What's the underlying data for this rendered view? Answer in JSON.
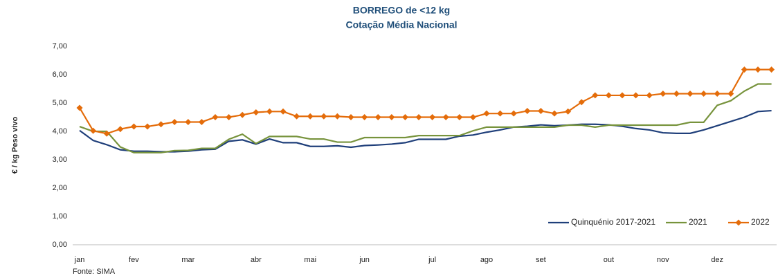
{
  "chart_data": {
    "type": "line",
    "title": "BORREGO de <12 kg",
    "subtitle": "Cotação Média Nacional",
    "y_label": "€ / kg Peso vivo",
    "source": "Fonte: SIMA",
    "categories": [
      "jan",
      null,
      null,
      null,
      "fev",
      null,
      null,
      null,
      "mar",
      null,
      null,
      null,
      null,
      "abr",
      null,
      null,
      null,
      "mai",
      null,
      null,
      null,
      "jun",
      null,
      null,
      null,
      null,
      "jul",
      null,
      null,
      null,
      "ago",
      null,
      null,
      null,
      "set",
      null,
      null,
      null,
      null,
      "out",
      null,
      null,
      null,
      "nov",
      null,
      null,
      null,
      "dez",
      null,
      null,
      null,
      null
    ],
    "series": [
      {
        "name": "Quinquénio 2017-2021",
        "color": "#1f3f7a",
        "marker": "none",
        "values": [
          4.03,
          3.68,
          3.53,
          3.35,
          3.3,
          3.3,
          3.28,
          3.28,
          3.3,
          3.35,
          3.37,
          3.65,
          3.7,
          3.55,
          3.73,
          3.6,
          3.6,
          3.47,
          3.47,
          3.49,
          3.44,
          3.5,
          3.52,
          3.55,
          3.6,
          3.72,
          3.72,
          3.72,
          3.83,
          3.87,
          3.97,
          4.05,
          4.15,
          4.18,
          4.23,
          4.2,
          4.22,
          4.25,
          4.25,
          4.23,
          4.18,
          4.1,
          4.05,
          3.95,
          3.93,
          3.93,
          4.05,
          4.2,
          4.35,
          4.5,
          4.7,
          4.73
        ]
      },
      {
        "name": "2021",
        "color": "#77933c",
        "marker": "none",
        "values": [
          4.17,
          4.0,
          4.0,
          3.45,
          3.25,
          3.25,
          3.25,
          3.32,
          3.33,
          3.4,
          3.4,
          3.72,
          3.9,
          3.57,
          3.82,
          3.82,
          3.82,
          3.73,
          3.73,
          3.62,
          3.62,
          3.78,
          3.78,
          3.78,
          3.78,
          3.85,
          3.85,
          3.85,
          3.85,
          4.02,
          4.15,
          4.15,
          4.15,
          4.15,
          4.15,
          4.15,
          4.22,
          4.22,
          4.15,
          4.22,
          4.22,
          4.22,
          4.22,
          4.22,
          4.22,
          4.32,
          4.32,
          4.92,
          5.08,
          5.42,
          5.67,
          5.67
        ]
      },
      {
        "name": "2022",
        "color": "#e46c0a",
        "marker": "diamond",
        "values": [
          4.83,
          4.02,
          3.92,
          4.08,
          4.17,
          4.17,
          4.25,
          4.33,
          4.33,
          4.33,
          4.5,
          4.5,
          4.58,
          4.67,
          4.7,
          4.7,
          4.53,
          4.53,
          4.53,
          4.53,
          4.5,
          4.5,
          4.5,
          4.5,
          4.5,
          4.5,
          4.5,
          4.5,
          4.5,
          4.5,
          4.63,
          4.63,
          4.63,
          4.72,
          4.72,
          4.63,
          4.7,
          5.03,
          5.27,
          5.27,
          5.27,
          5.27,
          5.27,
          5.33,
          5.33,
          5.33,
          5.33,
          5.33,
          5.33,
          6.18,
          6.18,
          6.18
        ]
      }
    ],
    "ylim": [
      0,
      7
    ],
    "yticks": [
      {
        "value": 0,
        "label": "0,00"
      },
      {
        "value": 1,
        "label": "1,00"
      },
      {
        "value": 2,
        "label": "2,00"
      },
      {
        "value": 3,
        "label": "3,00"
      },
      {
        "value": 4,
        "label": "4,00"
      },
      {
        "value": 5,
        "label": "5,00"
      },
      {
        "value": 6,
        "label": "6,00"
      },
      {
        "value": 7,
        "label": "7,00"
      }
    ],
    "grid": false,
    "legend": "lower right"
  }
}
